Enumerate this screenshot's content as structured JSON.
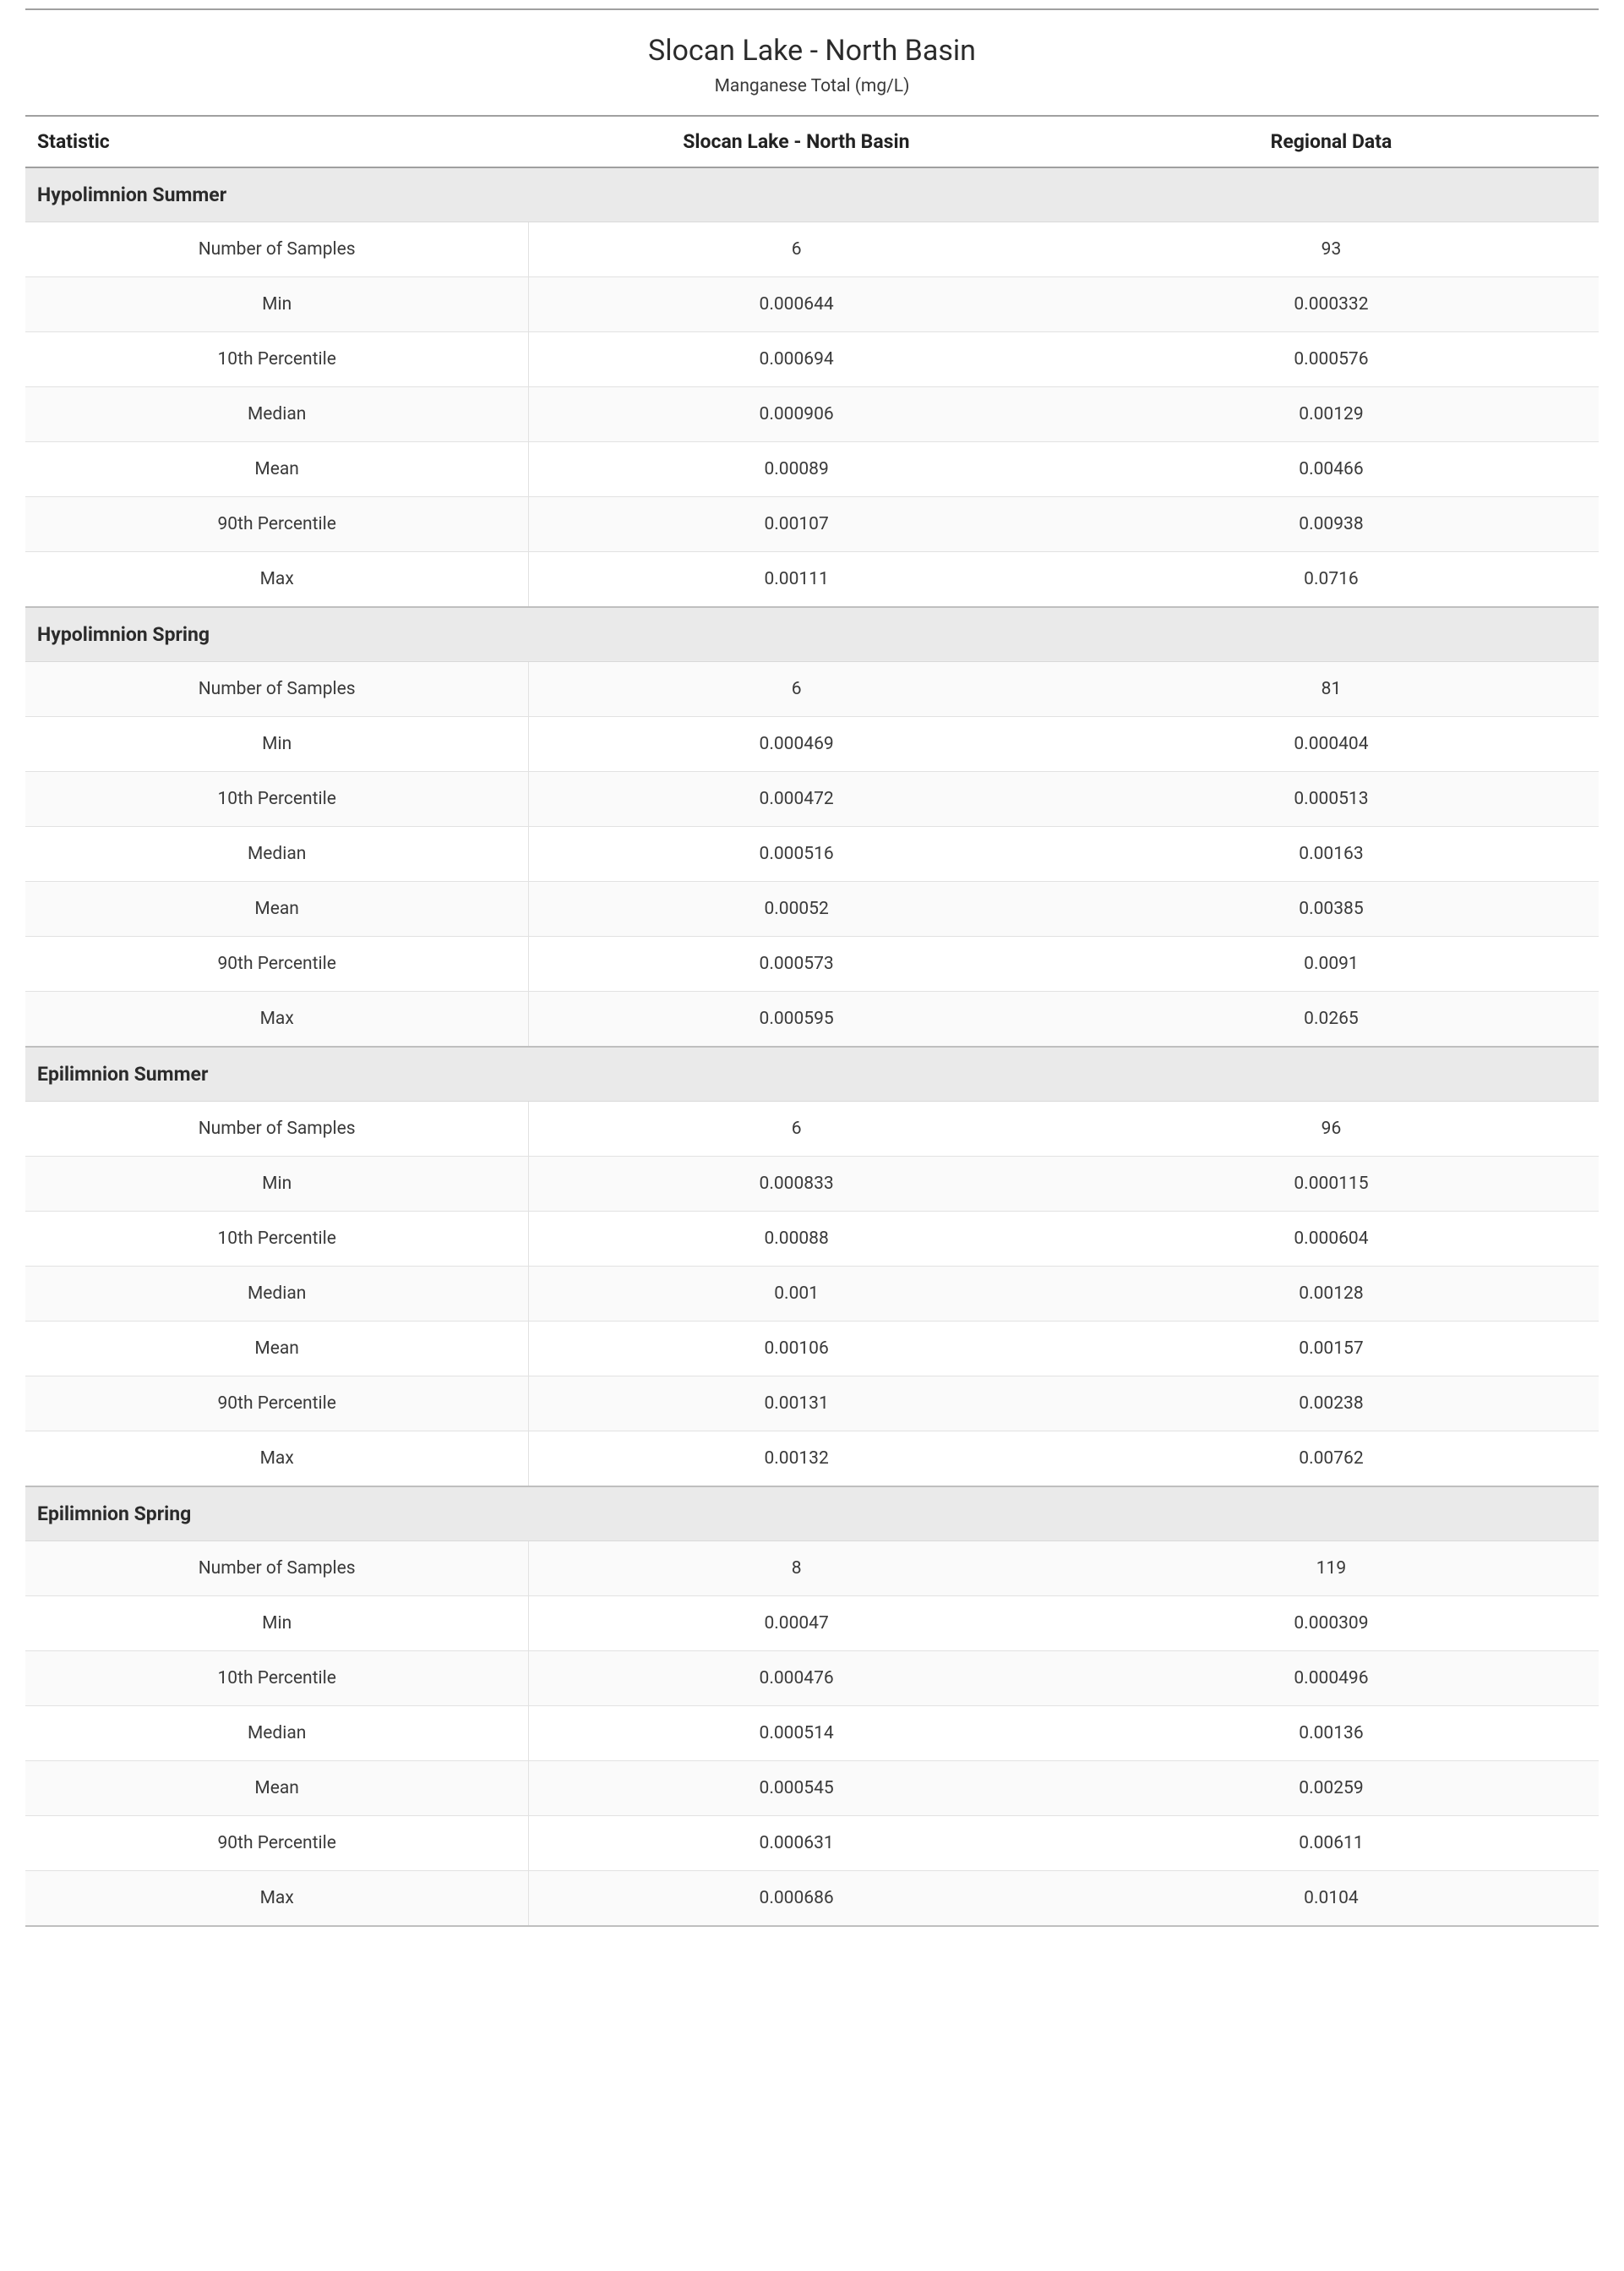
{
  "title": "Slocan Lake - North Basin",
  "subtitle": "Manganese Total (mg/L)",
  "columns": {
    "stat": "Statistic",
    "site": "Slocan Lake - North Basin",
    "regional": "Regional Data"
  },
  "stat_labels": {
    "n": "Number of Samples",
    "min": "Min",
    "p10": "10th Percentile",
    "median": "Median",
    "mean": "Mean",
    "p90": "90th Percentile",
    "max": "Max"
  },
  "sections": [
    {
      "name": "Hypolimnion Summer",
      "rows": {
        "n": {
          "site": "6",
          "regional": "93"
        },
        "min": {
          "site": "0.000644",
          "regional": "0.000332"
        },
        "p10": {
          "site": "0.000694",
          "regional": "0.000576"
        },
        "median": {
          "site": "0.000906",
          "regional": "0.00129"
        },
        "mean": {
          "site": "0.00089",
          "regional": "0.00466"
        },
        "p90": {
          "site": "0.00107",
          "regional": "0.00938"
        },
        "max": {
          "site": "0.00111",
          "regional": "0.0716"
        }
      }
    },
    {
      "name": "Hypolimnion Spring",
      "rows": {
        "n": {
          "site": "6",
          "regional": "81"
        },
        "min": {
          "site": "0.000469",
          "regional": "0.000404"
        },
        "p10": {
          "site": "0.000472",
          "regional": "0.000513"
        },
        "median": {
          "site": "0.000516",
          "regional": "0.00163"
        },
        "mean": {
          "site": "0.00052",
          "regional": "0.00385"
        },
        "p90": {
          "site": "0.000573",
          "regional": "0.0091"
        },
        "max": {
          "site": "0.000595",
          "regional": "0.0265"
        }
      }
    },
    {
      "name": "Epilimnion Summer",
      "rows": {
        "n": {
          "site": "6",
          "regional": "96"
        },
        "min": {
          "site": "0.000833",
          "regional": "0.000115"
        },
        "p10": {
          "site": "0.00088",
          "regional": "0.000604"
        },
        "median": {
          "site": "0.001",
          "regional": "0.00128"
        },
        "mean": {
          "site": "0.00106",
          "regional": "0.00157"
        },
        "p90": {
          "site": "0.00131",
          "regional": "0.00238"
        },
        "max": {
          "site": "0.00132",
          "regional": "0.00762"
        }
      }
    },
    {
      "name": "Epilimnion Spring",
      "rows": {
        "n": {
          "site": "8",
          "regional": "119"
        },
        "min": {
          "site": "0.00047",
          "regional": "0.000309"
        },
        "p10": {
          "site": "0.000476",
          "regional": "0.000496"
        },
        "median": {
          "site": "0.000514",
          "regional": "0.00136"
        },
        "mean": {
          "site": "0.000545",
          "regional": "0.00259"
        },
        "p90": {
          "site": "0.000631",
          "regional": "0.00611"
        },
        "max": {
          "site": "0.000686",
          "regional": "0.0104"
        }
      }
    }
  ]
}
